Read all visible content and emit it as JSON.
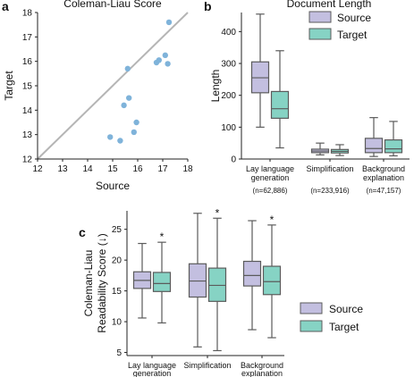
{
  "chart_data": [
    {
      "panel": "a",
      "type": "scatter",
      "title": "Coleman-Liau Score",
      "xlabel": "Source",
      "ylabel": "Target",
      "xlim": [
        12,
        18
      ],
      "ylim": [
        12,
        18
      ],
      "xticks": [
        12,
        13,
        14,
        15,
        16,
        17,
        18
      ],
      "yticks": [
        12,
        13,
        14,
        15,
        16,
        17,
        18
      ],
      "reference_line": "y = x",
      "points": [
        {
          "x": 17.25,
          "y": 17.6
        },
        {
          "x": 15.6,
          "y": 15.7
        },
        {
          "x": 16.75,
          "y": 15.95
        },
        {
          "x": 16.85,
          "y": 16.05
        },
        {
          "x": 17.1,
          "y": 16.25
        },
        {
          "x": 17.2,
          "y": 15.9
        },
        {
          "x": 15.65,
          "y": 14.5
        },
        {
          "x": 15.45,
          "y": 14.2
        },
        {
          "x": 15.95,
          "y": 13.5
        },
        {
          "x": 15.85,
          "y": 13.1
        },
        {
          "x": 14.9,
          "y": 12.9
        },
        {
          "x": 15.3,
          "y": 12.75
        }
      ]
    },
    {
      "panel": "b",
      "type": "box",
      "title": "Document Length",
      "ylabel": "Length",
      "ylim": [
        0,
        460
      ],
      "yticks": [
        0,
        100,
        200,
        300,
        400
      ],
      "categories": [
        "Lay language generation",
        "Simplification",
        "Background explanation"
      ],
      "category_notes": [
        "(n=62,886)",
        "(n=233,916)",
        "(n=47,157)"
      ],
      "legend_position": "top-right",
      "series": [
        {
          "name": "Source",
          "boxes": [
            {
              "min": 100,
              "q1": 208,
              "median": 255,
              "q3": 305,
              "max": 455
            },
            {
              "min": 13,
              "q1": 20,
              "median": 25,
              "q3": 31,
              "max": 50
            },
            {
              "min": 8,
              "q1": 20,
              "median": 33,
              "q3": 65,
              "max": 130
            }
          ]
        },
        {
          "name": "Target",
          "boxes": [
            {
              "min": 35,
              "q1": 128,
              "median": 158,
              "q3": 212,
              "max": 340
            },
            {
              "min": 11,
              "q1": 19,
              "median": 24,
              "q3": 30,
              "max": 45
            },
            {
              "min": 10,
              "q1": 20,
              "median": 32,
              "q3": 60,
              "max": 118
            }
          ]
        }
      ]
    },
    {
      "panel": "c",
      "type": "box",
      "ylabel": "Coleman-Liau Readability Score (↓)",
      "ylim": [
        4.5,
        28
      ],
      "yticks": [
        5,
        10,
        15,
        20,
        25
      ],
      "categories": [
        "Lay language generation",
        "Simplification",
        "Background explanation"
      ],
      "significance_marker": "*",
      "legend_position": "right",
      "series": [
        {
          "name": "Source",
          "boxes": [
            {
              "min": 10.6,
              "q1": 15.4,
              "median": 16.7,
              "q3": 18.1,
              "max": 22.7
            },
            {
              "min": 5.9,
              "q1": 14.0,
              "median": 16.6,
              "q3": 19.4,
              "max": 27.6
            },
            {
              "min": 8.7,
              "q1": 15.8,
              "median": 17.5,
              "q3": 19.8,
              "max": 26.4
            }
          ]
        },
        {
          "name": "Target",
          "boxes": [
            {
              "min": 9.8,
              "q1": 14.9,
              "median": 16.2,
              "q3": 18.0,
              "max": 22.9
            },
            {
              "min": 5.3,
              "q1": 13.3,
              "median": 15.9,
              "q3": 18.7,
              "max": 26.8
            },
            {
              "min": 7.4,
              "q1": 14.4,
              "median": 16.5,
              "q3": 19.0,
              "max": 25.7
            }
          ]
        }
      ]
    }
  ],
  "panels": {
    "a": "a",
    "b": "b",
    "c": "c"
  },
  "colors": {
    "source": "#c3bfe0",
    "target": "#86d3c4",
    "scatter_point": "#7fb3da",
    "line": "#b5b5b5",
    "box_edge": "#5b5b5b"
  }
}
